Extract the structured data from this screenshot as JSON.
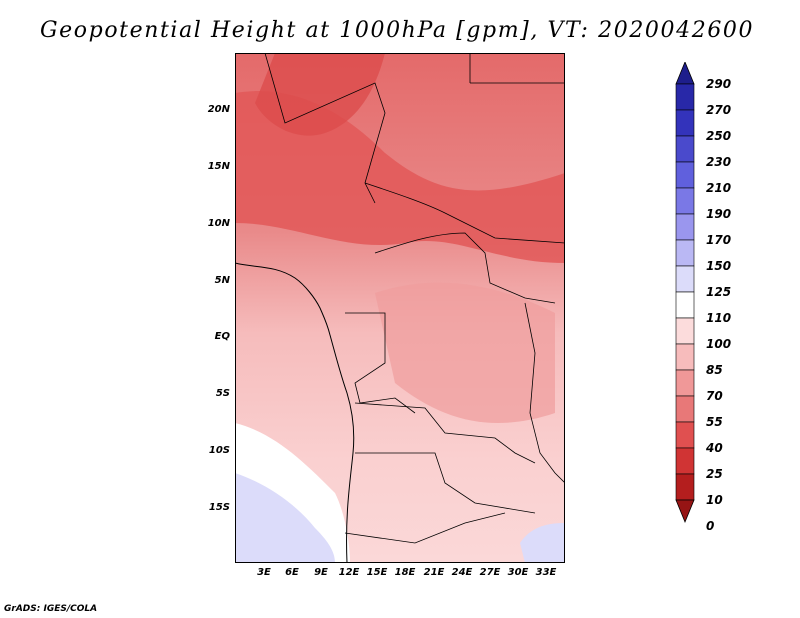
{
  "title": "Geopotential Height at 1000hPa [gpm], VT: 2020042600",
  "credit": "GrADS: IGES/COLA",
  "map": {
    "lat_labels": [
      "20N",
      "15N",
      "10N",
      "5N",
      "EQ",
      "5S",
      "10S",
      "15S"
    ],
    "lon_labels": [
      "3E",
      "6E",
      "9E",
      "12E",
      "15E",
      "18E",
      "21E",
      "24E",
      "27E",
      "30E",
      "33E"
    ]
  },
  "colorbar": {
    "levels": [
      "290",
      "270",
      "250",
      "230",
      "210",
      "190",
      "170",
      "150",
      "125",
      "110",
      "100",
      "85",
      "70",
      "55",
      "40",
      "25",
      "10",
      "0"
    ],
    "colors": [
      "#1e1e8c",
      "#2828a8",
      "#3333bb",
      "#4a4acc",
      "#6060dd",
      "#7a78e6",
      "#9a96ee",
      "#bab8f4",
      "#dcdcfa",
      "#ffffff",
      "#fcdcdc",
      "#f7bcbc",
      "#f09898",
      "#e87878",
      "#e05050",
      "#d03434",
      "#b41e1e",
      "#961414"
    ]
  }
}
